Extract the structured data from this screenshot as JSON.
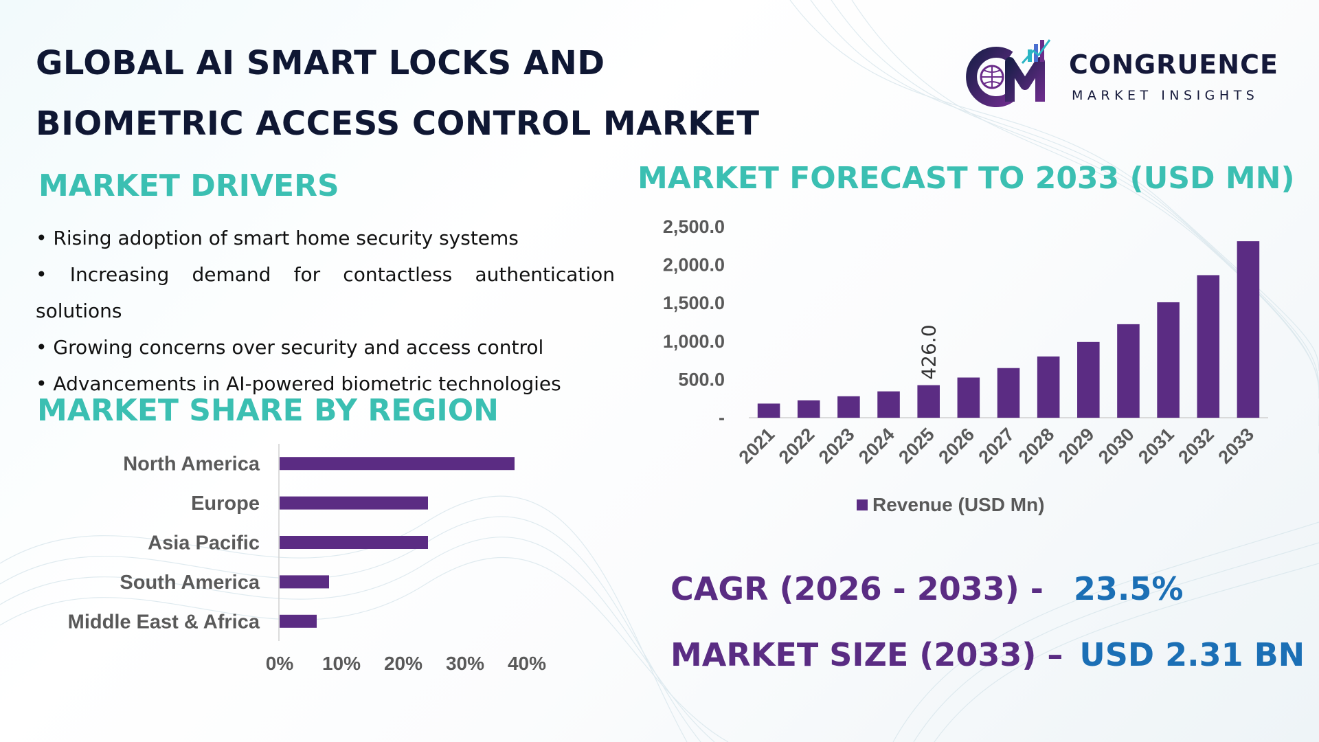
{
  "title": {
    "line1": "GLOBAL AI SMART LOCKS AND",
    "line2": "BIOMETRIC ACCESS CONTROL MARKET"
  },
  "logo": {
    "brand": "CONGRUENCE",
    "sub": "MARKET INSIGHTS",
    "monogram": "CM",
    "icon": "globe-bar-chart-logo-icon"
  },
  "drivers": {
    "title": "MARKET DRIVERS",
    "items": [
      "• Rising adoption of smart home security systems",
      "• Increasing demand for contactless authentication solutions",
      "• Growing concerns over security and access control",
      "• Advancements in AI-powered biometric technologies"
    ]
  },
  "forecast": {
    "title": "MARKET FORECAST TO 2033 (USD MN)"
  },
  "region": {
    "title": "MARKET SHARE BY REGION"
  },
  "stats": {
    "cagr_label": "CAGR (2026 - 2033) -",
    "cagr_value": "23.5%",
    "size_label": "MARKET SIZE (2033) –",
    "size_value": "USD 2.31 BN"
  },
  "colors": {
    "bar": "#5b2c83",
    "accent_teal": "#3bbfb2",
    "stat_purple": "#5a2c83",
    "stat_blue": "#1b6fb5",
    "title_navy": "#0f1733",
    "axis_text": "#595959"
  },
  "chart_data": [
    {
      "type": "bar",
      "orientation": "vertical",
      "title": "MARKET FORECAST TO 2033 (USD MN)",
      "categories": [
        "2021",
        "2022",
        "2023",
        "2024",
        "2025",
        "2026",
        "2027",
        "2028",
        "2029",
        "2030",
        "2031",
        "2032",
        "2033"
      ],
      "series": [
        {
          "name": "Revenue (USD Mn)",
          "values": [
            185,
            228,
            281,
            345,
            426,
            526,
            650,
            802,
            991,
            1224,
            1511,
            1866,
            2310
          ]
        }
      ],
      "data_labels": [
        {
          "category": "2025",
          "text": "426.0"
        }
      ],
      "yticks": [
        "-",
        "500.0",
        "1,000.0",
        "1,500.0",
        "2,000.0",
        "2,500.0"
      ],
      "ylim": [
        0,
        2500
      ],
      "legend": "bottom-center",
      "grid": false
    },
    {
      "type": "bar",
      "orientation": "horizontal",
      "title": "MARKET SHARE BY REGION",
      "categories": [
        "North America",
        "Europe",
        "Asia Pacific",
        "South America",
        "Middle East & Africa"
      ],
      "values": [
        0.38,
        0.24,
        0.24,
        0.08,
        0.06
      ],
      "xticks": [
        "0%",
        "10%",
        "20%",
        "30%",
        "40%"
      ],
      "xlim": [
        0,
        0.4
      ],
      "grid": false
    }
  ]
}
